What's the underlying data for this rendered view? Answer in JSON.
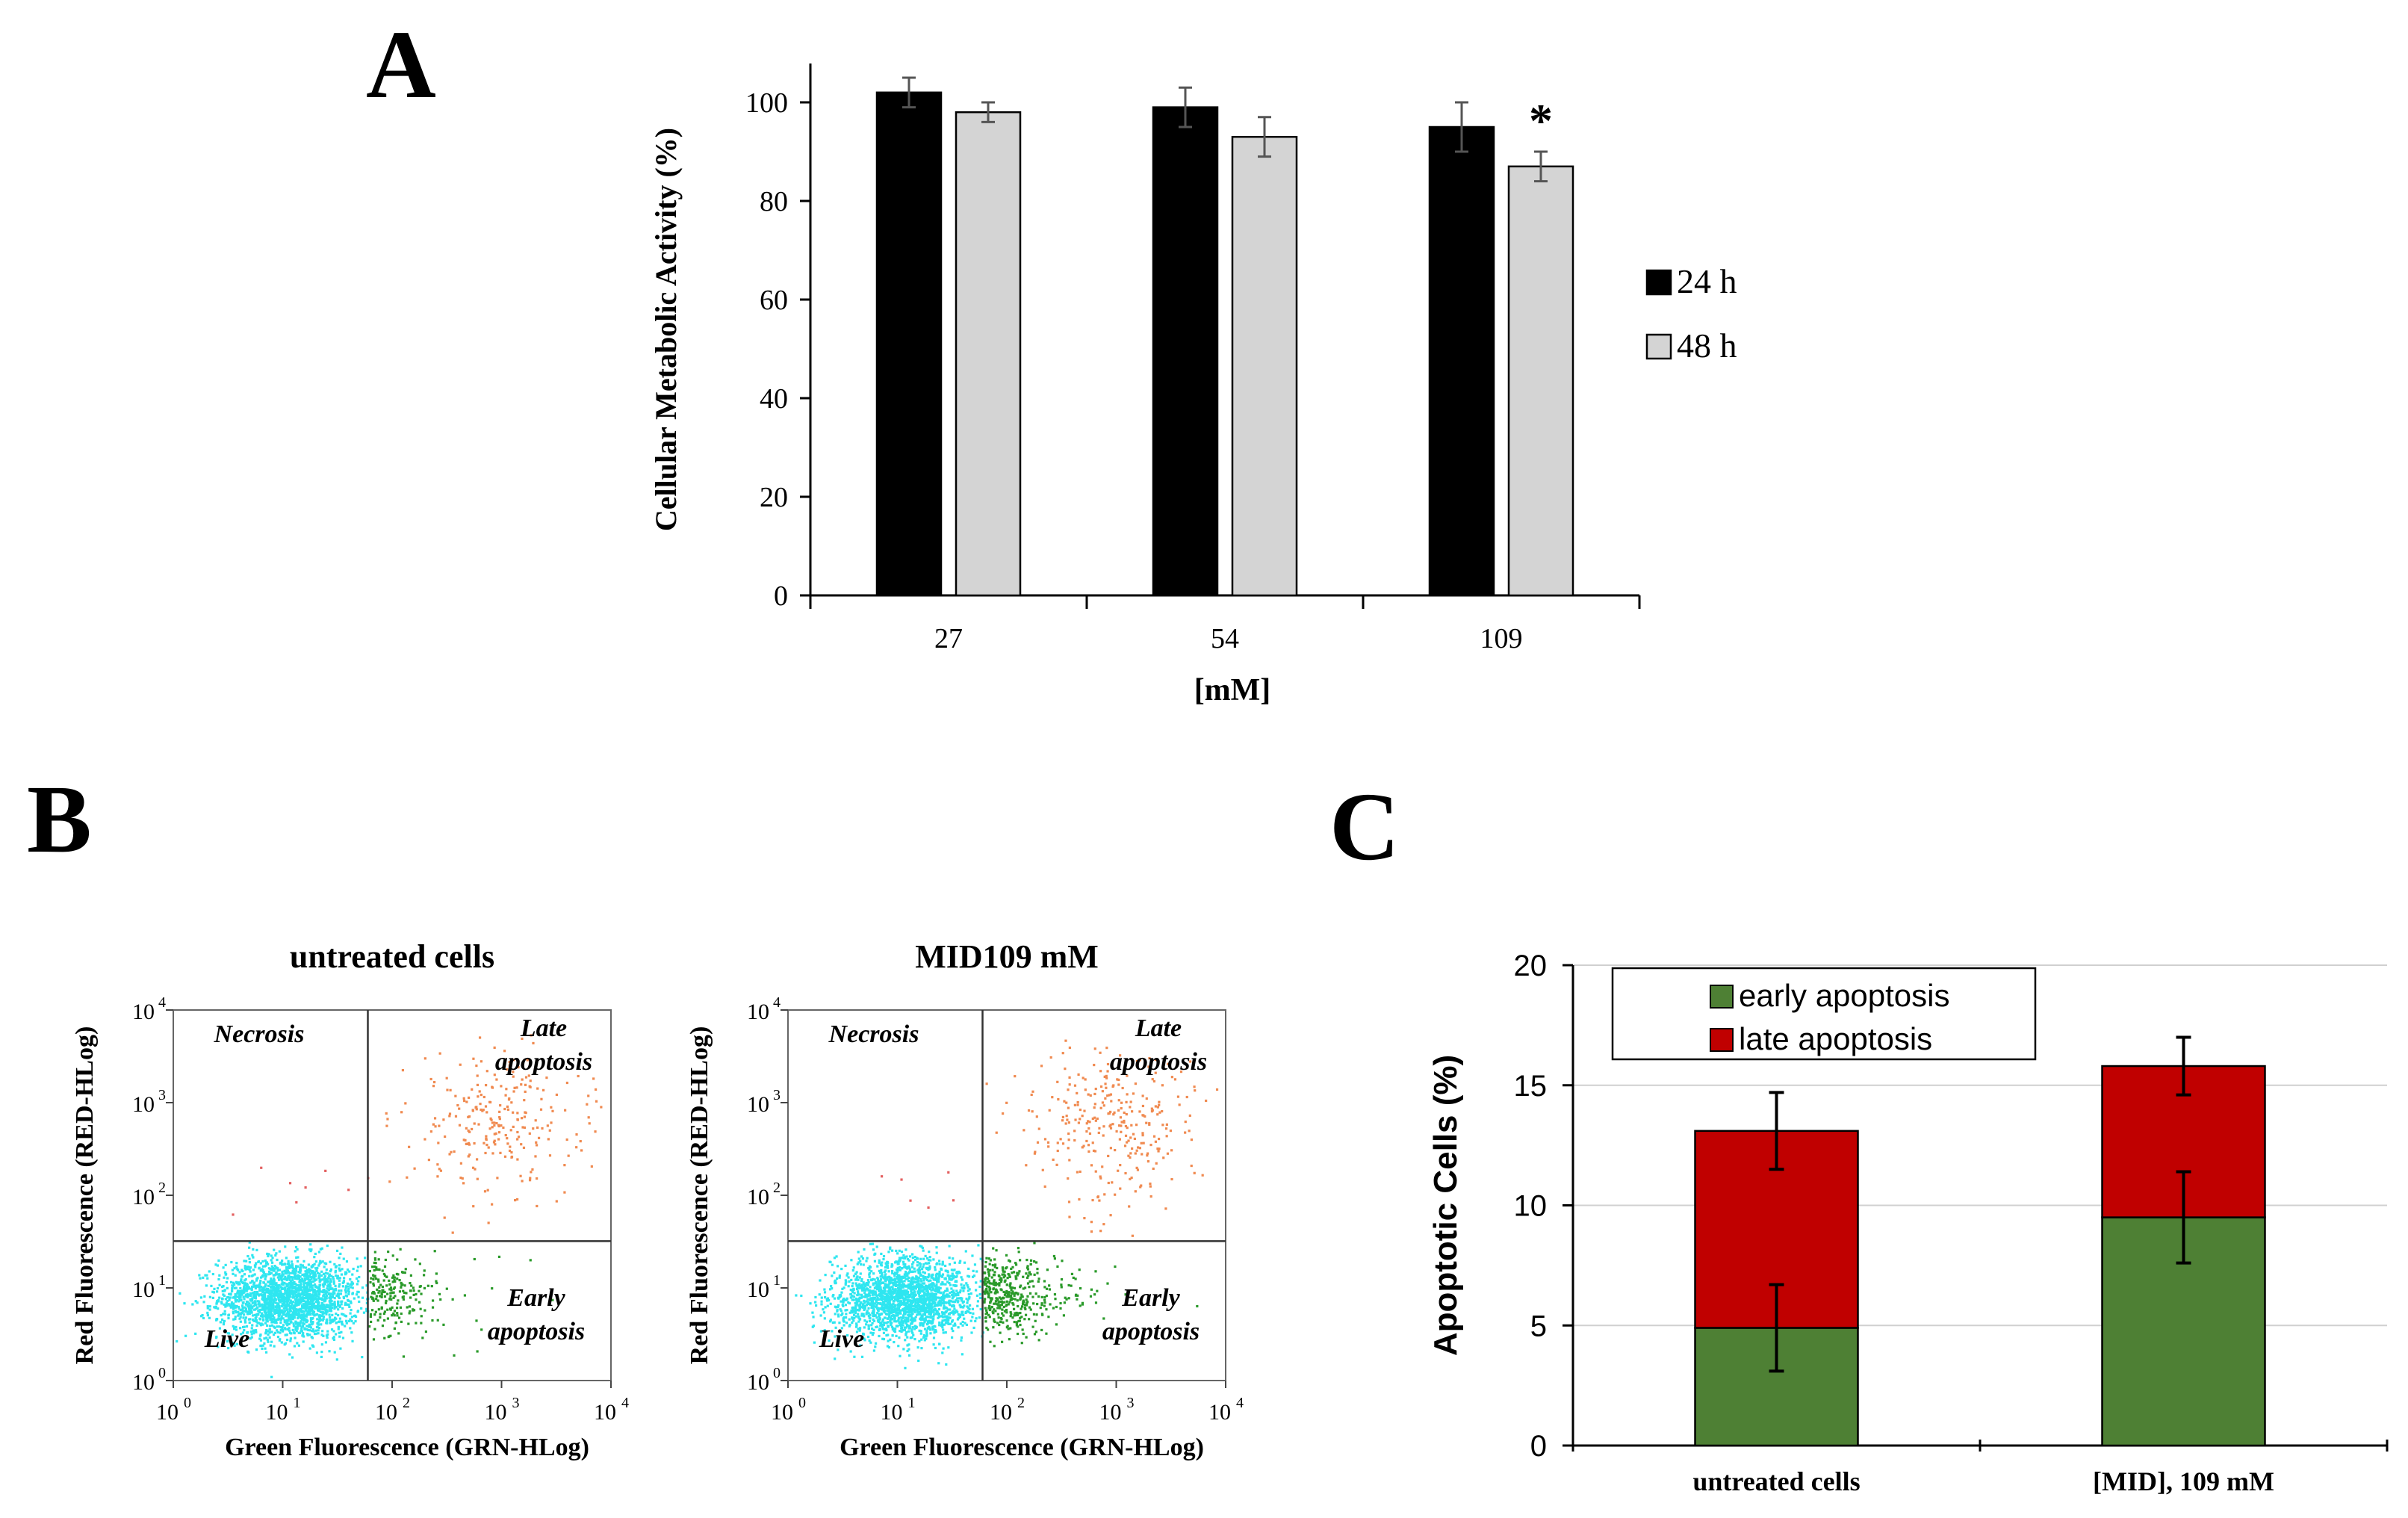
{
  "panels": {
    "A": "A",
    "B": "B",
    "C": "C"
  },
  "chart_data": [
    {
      "id": "A",
      "type": "bar",
      "ylabel": "Cellular Metabolic Activity (%)",
      "xlabel": "[mM]",
      "categories": [
        "27",
        "54",
        "109"
      ],
      "ylim": [
        0,
        100
      ],
      "yticks": [
        "0",
        "20",
        "40",
        "60",
        "80",
        "100"
      ],
      "series": [
        {
          "name": "24 h",
          "color": "#000000",
          "values": [
            102,
            99,
            95
          ],
          "errors": [
            3,
            4,
            5
          ]
        },
        {
          "name": "48 h",
          "color": "#d4d4d4",
          "values": [
            98,
            93,
            87
          ],
          "errors": [
            2,
            4,
            3
          ]
        }
      ],
      "annotations": [
        {
          "text": "*",
          "category": "109",
          "series": "48 h"
        }
      ],
      "legend": "right"
    },
    {
      "id": "B1",
      "type": "scatter",
      "title": "untreated cells",
      "xlabel": "Green Fluorescence (GRN-HLog)",
      "ylabel": "Red Fluorescence (RED-HLog)",
      "xscale": "log",
      "yscale": "log",
      "xlim": [
        1,
        10000
      ],
      "ylim": [
        1,
        10000
      ],
      "ticks": [
        "10",
        "10",
        "10",
        "10",
        "10"
      ],
      "tick_exponents": [
        "0",
        "1",
        "2",
        "3",
        "4"
      ],
      "gate": {
        "x": 60,
        "y": 32
      },
      "quadrants": {
        "top_left": "Necrosis",
        "top_right": [
          "Late",
          "apoptosis"
        ],
        "bottom_left": "Live",
        "bottom_right": [
          "Early",
          "apoptosis"
        ]
      },
      "population_colors": {
        "live": "#2ee6f0",
        "early": "#2a9a2a",
        "late": "#f08a50",
        "necrosis": "#e36060"
      }
    },
    {
      "id": "B2",
      "type": "scatter",
      "title": "MID109 mM",
      "xlabel": "Green Fluorescence (GRN-HLog)",
      "ylabel": "Red Fluorescence (RED-HLog)",
      "xscale": "log",
      "yscale": "log",
      "xlim": [
        1,
        10000
      ],
      "ylim": [
        1,
        10000
      ],
      "ticks": [
        "10",
        "10",
        "10",
        "10",
        "10"
      ],
      "tick_exponents": [
        "0",
        "1",
        "2",
        "3",
        "4"
      ],
      "gate": {
        "x": 60,
        "y": 32
      },
      "quadrants": {
        "top_left": "Necrosis",
        "top_right": [
          "Late",
          "apoptosis"
        ],
        "bottom_left": "Live",
        "bottom_right": [
          "Early",
          "apoptosis"
        ]
      },
      "population_colors": {
        "live": "#2ee6f0",
        "early": "#2a9a2a",
        "late": "#f08a50",
        "necrosis": "#e36060"
      }
    },
    {
      "id": "C",
      "type": "bar",
      "stacked": true,
      "ylabel": "Apoptotic Cells (%)",
      "categories": [
        "untreated cells",
        "[MID], 109 mM"
      ],
      "ylim": [
        0,
        20
      ],
      "yticks": [
        "0",
        "5",
        "10",
        "15",
        "20"
      ],
      "grid": true,
      "series": [
        {
          "name": "early apoptosis",
          "color": "#4e8034",
          "values": [
            4.9,
            9.5
          ],
          "errors": [
            1.8,
            1.9
          ]
        },
        {
          "name": "late apoptosis",
          "color": "#c00000",
          "values": [
            8.2,
            6.3
          ],
          "errors": [
            1.6,
            1.2
          ]
        }
      ],
      "legend": "top-left"
    }
  ]
}
